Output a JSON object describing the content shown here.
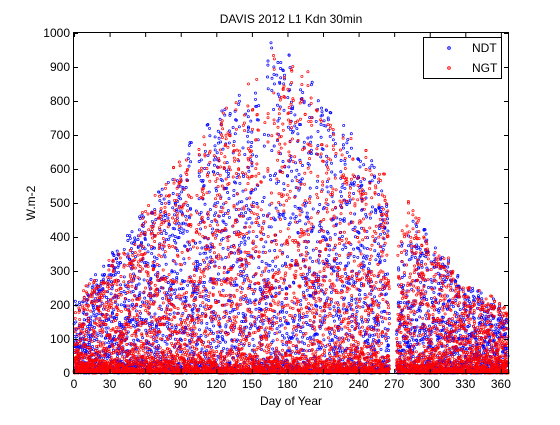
{
  "chart_data": {
    "type": "scatter",
    "title": "DAVIS 2012 L1 Kdn 30min",
    "xlabel": "Day of Year",
    "ylabel": "W.m-2",
    "xlim": [
      0,
      366
    ],
    "ylim": [
      0,
      1000
    ],
    "xticks": [
      0,
      30,
      60,
      90,
      120,
      150,
      180,
      210,
      240,
      270,
      300,
      330,
      360
    ],
    "yticks": [
      0,
      100,
      200,
      300,
      400,
      500,
      600,
      700,
      800,
      900,
      1000
    ],
    "grid": false,
    "legend": {
      "placement": "top-right",
      "marker": "dot"
    },
    "data_gap": [
      266,
      271
    ],
    "series": [
      {
        "name": "NDT",
        "color": "#0000ff",
        "envelope": [
          [
            0,
            240
          ],
          [
            10,
            280
          ],
          [
            20,
            310
          ],
          [
            30,
            360
          ],
          [
            45,
            430
          ],
          [
            60,
            530
          ],
          [
            75,
            590
          ],
          [
            85,
            640
          ],
          [
            90,
            650
          ],
          [
            100,
            700
          ],
          [
            110,
            740
          ],
          [
            120,
            780
          ],
          [
            130,
            800
          ],
          [
            140,
            820
          ],
          [
            150,
            880
          ],
          [
            160,
            920
          ],
          [
            165,
            1000
          ],
          [
            170,
            990
          ],
          [
            180,
            970
          ],
          [
            190,
            950
          ],
          [
            200,
            900
          ],
          [
            210,
            830
          ],
          [
            220,
            770
          ],
          [
            230,
            720
          ],
          [
            240,
            690
          ],
          [
            250,
            670
          ],
          [
            260,
            600
          ],
          [
            266,
            500
          ],
          [
            271,
            400
          ],
          [
            280,
            430
          ],
          [
            290,
            480
          ],
          [
            300,
            420
          ],
          [
            310,
            370
          ],
          [
            320,
            320
          ],
          [
            330,
            280
          ],
          [
            340,
            250
          ],
          [
            350,
            230
          ],
          [
            360,
            210
          ],
          [
            366,
            200
          ]
        ]
      },
      {
        "name": "NGT",
        "color": "#ff0000",
        "envelope": [
          [
            0,
            200
          ],
          [
            10,
            260
          ],
          [
            20,
            300
          ],
          [
            30,
            340
          ],
          [
            45,
            400
          ],
          [
            60,
            510
          ],
          [
            75,
            580
          ],
          [
            85,
            630
          ],
          [
            90,
            640
          ],
          [
            100,
            690
          ],
          [
            110,
            720
          ],
          [
            120,
            760
          ],
          [
            130,
            790
          ],
          [
            140,
            830
          ],
          [
            145,
            860
          ],
          [
            150,
            850
          ],
          [
            160,
            920
          ],
          [
            170,
            960
          ],
          [
            180,
            980
          ],
          [
            190,
            950
          ],
          [
            200,
            880
          ],
          [
            210,
            820
          ],
          [
            220,
            760
          ],
          [
            230,
            700
          ],
          [
            240,
            680
          ],
          [
            250,
            690
          ],
          [
            260,
            620
          ],
          [
            266,
            520
          ],
          [
            271,
            420
          ],
          [
            280,
            550
          ],
          [
            290,
            470
          ],
          [
            300,
            400
          ],
          [
            310,
            360
          ],
          [
            320,
            330
          ],
          [
            330,
            270
          ],
          [
            340,
            260
          ],
          [
            350,
            240
          ],
          [
            360,
            200
          ],
          [
            366,
            190
          ]
        ]
      }
    ]
  }
}
